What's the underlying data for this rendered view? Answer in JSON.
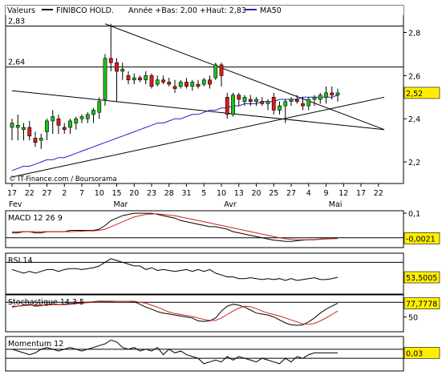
{
  "header": {
    "prefix": "Valeurs",
    "symbol": "FINIBCO HOLD.",
    "stats": "Année +Bas: 2,00 +Haut: 2,83",
    "ma_label": "MA50"
  },
  "watermark": "© IT-Finance.com / Boursorama",
  "colors": {
    "up": "#19c219",
    "down": "#e01818",
    "ma": "#2222cc",
    "price_badge": "#ffee00",
    "trendline": "#000000",
    "indicator_main": "#000000",
    "indicator_signal": "#cc2222"
  },
  "x_axis": {
    "ticks": [
      {
        "i": 0,
        "label": "17"
      },
      {
        "i": 3,
        "label": "22"
      },
      {
        "i": 6,
        "label": "27"
      },
      {
        "i": 9,
        "label": "2"
      },
      {
        "i": 12,
        "label": "7"
      },
      {
        "i": 15,
        "label": "10"
      },
      {
        "i": 18,
        "label": "15"
      },
      {
        "i": 21,
        "label": "20"
      },
      {
        "i": 24,
        "label": "23"
      },
      {
        "i": 27,
        "label": "28"
      },
      {
        "i": 30,
        "label": "31"
      },
      {
        "i": 33,
        "label": "5"
      },
      {
        "i": 36,
        "label": "10"
      },
      {
        "i": 39,
        "label": "13"
      },
      {
        "i": 42,
        "label": "20"
      },
      {
        "i": 45,
        "label": "25"
      },
      {
        "i": 48,
        "label": "27"
      },
      {
        "i": 51,
        "label": "4"
      },
      {
        "i": 54,
        "label": "9"
      },
      {
        "i": 57,
        "label": "12"
      },
      {
        "i": 60,
        "label": "17"
      },
      {
        "i": 63,
        "label": "22"
      }
    ],
    "months": [
      {
        "i": 0,
        "label": "Fev"
      },
      {
        "i": 18,
        "label": "Mar"
      },
      {
        "i": 37,
        "label": "Avr"
      },
      {
        "i": 55,
        "label": "Mai"
      }
    ]
  },
  "chart_data": [
    {
      "type": "candlestick",
      "title": "FINIBCO HOLD.",
      "ylim": [
        2.1,
        2.88
      ],
      "yticks": [
        2.2,
        2.4,
        2.6,
        2.8
      ],
      "ytick_labels": [
        "2,2",
        "2,4",
        "2,6",
        "2,8"
      ],
      "hlines": [
        {
          "value": 2.83,
          "label": "2,83"
        },
        {
          "value": 2.64,
          "label": "2,64"
        }
      ],
      "last_price": {
        "value": 2.52,
        "label": "2,52"
      },
      "trendlines": [
        {
          "from": [
            16,
            2.84
          ],
          "to": [
            64,
            2.35
          ]
        },
        {
          "from": [
            0,
            2.53
          ],
          "to": [
            64,
            2.35
          ]
        },
        {
          "from": [
            0,
            2.13
          ],
          "to": [
            64,
            2.5
          ]
        }
      ],
      "candles": [
        [
          2.36,
          2.4,
          2.3,
          2.38
        ],
        [
          2.36,
          2.42,
          2.3,
          2.37
        ],
        [
          2.35,
          2.38,
          2.3,
          2.36
        ],
        [
          2.36,
          2.39,
          2.3,
          2.32
        ],
        [
          2.31,
          2.34,
          2.27,
          2.29
        ],
        [
          2.3,
          2.33,
          2.26,
          2.31
        ],
        [
          2.34,
          2.4,
          2.3,
          2.39
        ],
        [
          2.39,
          2.44,
          2.33,
          2.41
        ],
        [
          2.4,
          2.42,
          2.33,
          2.37
        ],
        [
          2.36,
          2.38,
          2.33,
          2.35
        ],
        [
          2.36,
          2.4,
          2.33,
          2.39
        ],
        [
          2.38,
          2.41,
          2.35,
          2.4
        ],
        [
          2.4,
          2.42,
          2.38,
          2.41
        ],
        [
          2.4,
          2.43,
          2.38,
          2.42
        ],
        [
          2.42,
          2.45,
          2.38,
          2.44
        ],
        [
          2.43,
          2.5,
          2.4,
          2.48
        ],
        [
          2.49,
          2.7,
          2.46,
          2.68
        ],
        [
          2.68,
          2.84,
          2.62,
          2.66
        ],
        [
          2.66,
          2.68,
          2.48,
          2.62
        ],
        [
          2.62,
          2.66,
          2.58,
          2.63
        ],
        [
          2.6,
          2.62,
          2.56,
          2.58
        ],
        [
          2.58,
          2.61,
          2.56,
          2.59
        ],
        [
          2.59,
          2.6,
          2.57,
          2.58
        ],
        [
          2.58,
          2.62,
          2.56,
          2.6
        ],
        [
          2.6,
          2.61,
          2.54,
          2.55
        ],
        [
          2.56,
          2.6,
          2.55,
          2.58
        ],
        [
          2.58,
          2.6,
          2.56,
          2.57
        ],
        [
          2.57,
          2.59,
          2.55,
          2.56
        ],
        [
          2.55,
          2.58,
          2.52,
          2.54
        ],
        [
          2.55,
          2.58,
          2.54,
          2.57
        ],
        [
          2.57,
          2.59,
          2.54,
          2.55
        ],
        [
          2.55,
          2.58,
          2.53,
          2.57
        ],
        [
          2.56,
          2.58,
          2.54,
          2.55
        ],
        [
          2.56,
          2.59,
          2.55,
          2.58
        ],
        [
          2.58,
          2.6,
          2.54,
          2.56
        ],
        [
          2.59,
          2.66,
          2.58,
          2.65
        ],
        [
          2.65,
          2.66,
          2.55,
          2.6
        ],
        [
          2.5,
          2.52,
          2.4,
          2.42
        ],
        [
          2.42,
          2.52,
          2.41,
          2.51
        ],
        [
          2.51,
          2.52,
          2.46,
          2.49
        ],
        [
          2.48,
          2.51,
          2.46,
          2.5
        ],
        [
          2.49,
          2.51,
          2.46,
          2.48
        ],
        [
          2.48,
          2.5,
          2.46,
          2.49
        ],
        [
          2.48,
          2.5,
          2.46,
          2.47
        ],
        [
          2.47,
          2.49,
          2.44,
          2.48
        ],
        [
          2.5,
          2.52,
          2.42,
          2.44
        ],
        [
          2.44,
          2.48,
          2.42,
          2.46
        ],
        [
          2.46,
          2.49,
          2.38,
          2.48
        ],
        [
          2.48,
          2.5,
          2.46,
          2.49
        ],
        [
          2.49,
          2.51,
          2.47,
          2.48
        ],
        [
          2.47,
          2.5,
          2.44,
          2.46
        ],
        [
          2.46,
          2.5,
          2.44,
          2.49
        ],
        [
          2.49,
          2.51,
          2.46,
          2.5
        ],
        [
          2.49,
          2.52,
          2.47,
          2.51
        ],
        [
          2.5,
          2.55,
          2.47,
          2.52
        ],
        [
          2.52,
          2.55,
          2.49,
          2.51
        ],
        [
          2.51,
          2.54,
          2.48,
          2.52
        ]
      ],
      "ma50": [
        2.16,
        2.17,
        2.18,
        2.18,
        2.19,
        2.2,
        2.21,
        2.21,
        2.22,
        2.22,
        2.23,
        2.24,
        2.25,
        2.26,
        2.27,
        2.28,
        2.29,
        2.3,
        2.31,
        2.32,
        2.33,
        2.34,
        2.35,
        2.36,
        2.37,
        2.38,
        2.38,
        2.39,
        2.4,
        2.4,
        2.41,
        2.42,
        2.42,
        2.43,
        2.44,
        2.44,
        2.45,
        2.45,
        2.46,
        2.46,
        2.47,
        2.47,
        2.47,
        2.48,
        2.48,
        2.48,
        2.49,
        2.49,
        2.49,
        2.49,
        2.5,
        2.5,
        2.5,
        2.5,
        2.5,
        2.5,
        2.51
      ]
    },
    {
      "type": "line",
      "title": "MACD 12 26 9",
      "ylim": [
        -0.04,
        0.11
      ],
      "yticks": [
        0.1
      ],
      "ytick_labels": [
        "0,1"
      ],
      "hlines": [
        {
          "value": 0.0
        }
      ],
      "last_value": {
        "value": -0.0021,
        "label": "-0,0021"
      },
      "series": [
        {
          "name": "macd",
          "values": [
            0.02,
            0.02,
            0.025,
            0.025,
            0.02,
            0.02,
            0.025,
            0.025,
            0.025,
            0.025,
            0.03,
            0.03,
            0.03,
            0.03,
            0.03,
            0.035,
            0.05,
            0.07,
            0.08,
            0.09,
            0.095,
            0.1,
            0.1,
            0.1,
            0.1,
            0.095,
            0.09,
            0.085,
            0.08,
            0.07,
            0.065,
            0.06,
            0.055,
            0.05,
            0.045,
            0.045,
            0.04,
            0.035,
            0.025,
            0.02,
            0.015,
            0.01,
            0.005,
            0.0,
            -0.005,
            -0.01,
            -0.012,
            -0.015,
            -0.015,
            -0.012,
            -0.01,
            -0.008,
            -0.008,
            -0.005,
            -0.004,
            -0.003,
            -0.002
          ]
        },
        {
          "name": "signal",
          "values": [
            0.025,
            0.025,
            0.025,
            0.025,
            0.025,
            0.025,
            0.025,
            0.025,
            0.025,
            0.025,
            0.025,
            0.026,
            0.027,
            0.028,
            0.028,
            0.03,
            0.035,
            0.045,
            0.055,
            0.065,
            0.075,
            0.085,
            0.09,
            0.095,
            0.097,
            0.097,
            0.095,
            0.092,
            0.09,
            0.085,
            0.08,
            0.075,
            0.07,
            0.065,
            0.06,
            0.055,
            0.05,
            0.045,
            0.04,
            0.035,
            0.03,
            0.025,
            0.02,
            0.015,
            0.01,
            0.005,
            0.0,
            -0.004,
            -0.006,
            -0.008,
            -0.008,
            -0.008,
            -0.007,
            -0.006,
            -0.005,
            -0.004,
            -0.003
          ]
        }
      ]
    },
    {
      "type": "line",
      "title": "RSI 14",
      "ylim": [
        35,
        80
      ],
      "hlines": [
        {
          "value": 70
        },
        {
          "value": 30
        }
      ],
      "last_value": {
        "value": 53.5005,
        "label": "53,5005"
      },
      "series": [
        {
          "name": "rsi",
          "values": [
            62,
            60,
            58,
            60,
            58,
            60,
            62,
            62,
            60,
            62,
            63,
            63,
            62,
            63,
            64,
            66,
            70,
            74,
            72,
            70,
            68,
            66,
            66,
            62,
            64,
            61,
            62,
            61,
            60,
            61,
            62,
            60,
            62,
            60,
            62,
            58,
            56,
            54,
            54,
            52,
            52,
            53,
            52,
            51,
            52,
            51,
            52,
            50,
            52,
            50,
            51,
            52,
            53,
            51,
            51,
            52,
            53.5
          ]
        }
      ]
    },
    {
      "type": "line",
      "title": "Stochastique 14 3 5",
      "ylim": [
        20,
        95
      ],
      "yticks": [
        50
      ],
      "ytick_labels": [
        "50"
      ],
      "hlines": [
        {
          "value": 80
        },
        {
          "value": 20
        }
      ],
      "last_value": {
        "value": 77.7778,
        "label": "77,7778"
      },
      "series": [
        {
          "name": "%K",
          "values": [
            70,
            72,
            74,
            75,
            72,
            73,
            75,
            76,
            75,
            76,
            77,
            78,
            79,
            80,
            81,
            82,
            82,
            82,
            82,
            82,
            82,
            81,
            76,
            70,
            66,
            61,
            58,
            56,
            54,
            52,
            50,
            48,
            42,
            41,
            42,
            48,
            62,
            72,
            76,
            74,
            70,
            64,
            58,
            56,
            54,
            50,
            44,
            38,
            34,
            33,
            34,
            40,
            48,
            58,
            66,
            72,
            78
          ]
        },
        {
          "name": "%D",
          "values": [
            72,
            72,
            73,
            74,
            74,
            74,
            74,
            75,
            75,
            75,
            76,
            77,
            78,
            79,
            80,
            80,
            81,
            81,
            82,
            82,
            82,
            82,
            80,
            78,
            74,
            70,
            65,
            60,
            57,
            55,
            53,
            51,
            48,
            45,
            43,
            43,
            48,
            55,
            62,
            68,
            72,
            71,
            67,
            62,
            58,
            55,
            52,
            48,
            44,
            40,
            36,
            35,
            37,
            42,
            48,
            55,
            62
          ]
        }
      ]
    },
    {
      "type": "line",
      "title": "Momentum 12",
      "ylim": [
        -0.07,
        0.12
      ],
      "hlines": [
        {
          "value": 0.05
        },
        {
          "value": 0.0
        }
      ],
      "last_value": {
        "value": 0.03,
        "label": "0,03"
      },
      "series": [
        {
          "name": "momentum",
          "values": [
            0.05,
            0.04,
            0.03,
            0.02,
            0.03,
            0.05,
            0.06,
            0.05,
            0.04,
            0.05,
            0.06,
            0.05,
            0.04,
            0.05,
            0.06,
            0.07,
            0.08,
            0.1,
            0.09,
            0.06,
            0.05,
            0.06,
            0.04,
            0.05,
            0.04,
            0.06,
            0.02,
            0.05,
            0.03,
            0.04,
            0.02,
            0.01,
            0.0,
            -0.03,
            -0.02,
            -0.01,
            -0.02,
            0.01,
            -0.01,
            0.01,
            0.0,
            -0.01,
            -0.02,
            0.0,
            -0.01,
            -0.02,
            -0.03,
            0.0,
            -0.02,
            0.01,
            0.0,
            0.02,
            0.03,
            0.03,
            0.03,
            0.03,
            0.03
          ]
        }
      ]
    }
  ]
}
